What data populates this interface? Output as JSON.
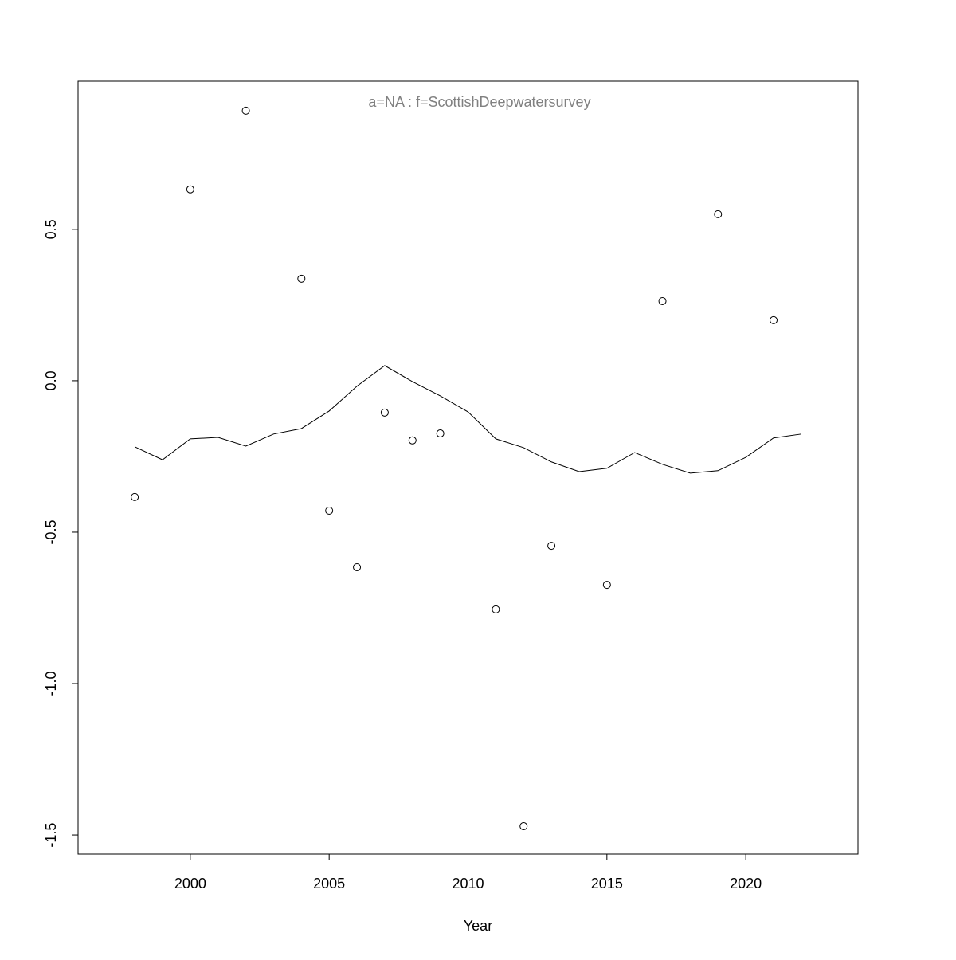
{
  "chart_data": {
    "type": "scatter",
    "title": "a=NA  :  f=ScottishDeepwatersurvey",
    "x_label": "Year",
    "xlim": [
      1995.96,
      2024.04
    ],
    "ylim": [
      -1.563,
      0.989
    ],
    "xticks": [
      2000,
      2005,
      2010,
      2015,
      2020
    ],
    "yticks": [
      {
        "value": -1.5,
        "label": "-1.5"
      },
      {
        "value": -1,
        "label": "-1.0"
      },
      -0.5,
      {
        "value": 0,
        "label": "0.0"
      },
      0.5
    ],
    "series": [
      {
        "type": "scatter",
        "color": "#000000",
        "x": [
          1998,
          2000,
          2002,
          2004,
          2005,
          2006,
          2007,
          2008,
          2009,
          2011,
          2012,
          2013,
          2015,
          2017,
          2019,
          2021
        ],
        "values": [
          -0.384,
          0.632,
          0.892,
          0.337,
          -0.429,
          -0.616,
          -0.105,
          -0.197,
          -0.174,
          -0.755,
          -1.471,
          -0.545,
          -0.674,
          0.263,
          0.55,
          0.2
        ]
      },
      {
        "type": "line",
        "color": "#000000",
        "x": [
          1998,
          1999,
          2000,
          2001,
          2002,
          2003,
          2004,
          2005,
          2006,
          2007,
          2008,
          2009,
          2010,
          2011,
          2012,
          2013,
          2014,
          2015,
          2016,
          2017,
          2018,
          2019,
          2020,
          2021,
          2022
        ],
        "values": [
          -0.218,
          -0.261,
          -0.192,
          -0.187,
          -0.216,
          -0.176,
          -0.158,
          -0.1,
          -0.018,
          0.05,
          -0.003,
          -0.05,
          -0.103,
          -0.192,
          -0.221,
          -0.268,
          -0.3,
          -0.289,
          -0.237,
          -0.276,
          -0.305,
          -0.297,
          -0.253,
          -0.189,
          -0.176
        ]
      }
    ]
  }
}
